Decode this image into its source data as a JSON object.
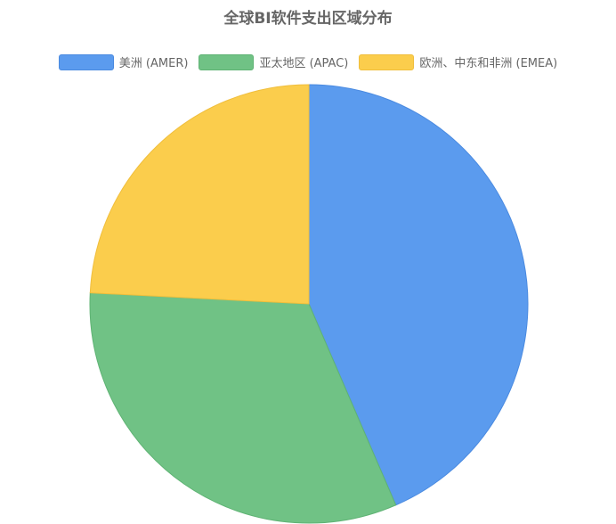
{
  "chart_data": {
    "type": "pie",
    "title": "全球BI软件支出区域分布",
    "legend_position": "top",
    "categories": [
      "美洲 (AMER)",
      "亚太地区 (APAC)",
      "欧洲、中东和非洲 (EMEA)"
    ],
    "values": [
      43.5,
      32.3,
      24.2
    ],
    "colors": [
      "#5b9bee",
      "#70c285",
      "#fbcd4c"
    ],
    "border_colors": [
      "#4a8ae0",
      "#5fb374",
      "#f0be3c"
    ]
  }
}
